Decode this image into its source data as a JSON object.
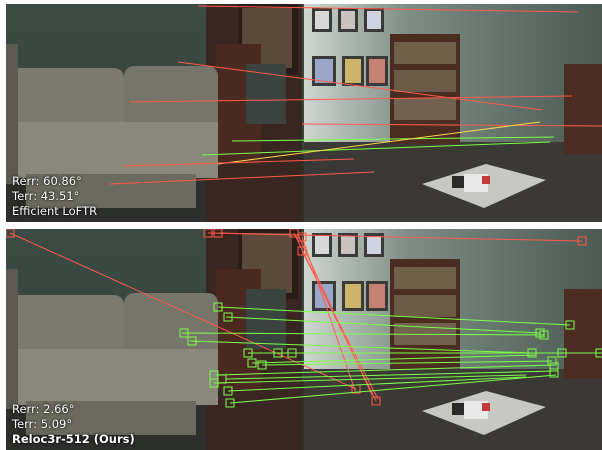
{
  "panels": [
    {
      "rerr": "Rerr: 60.86°",
      "terr": "Terr: 43.51°",
      "method": "Efficient LoFTR",
      "method_bold": false
    },
    {
      "rerr": "Rerr: 2.66°",
      "terr": "Terr: 5.09°",
      "method": "Reloc3r-512 (Ours)",
      "method_bold": true
    }
  ],
  "colors": {
    "inlier": "#7cff4a",
    "outlier": "#ff5a4a"
  }
}
